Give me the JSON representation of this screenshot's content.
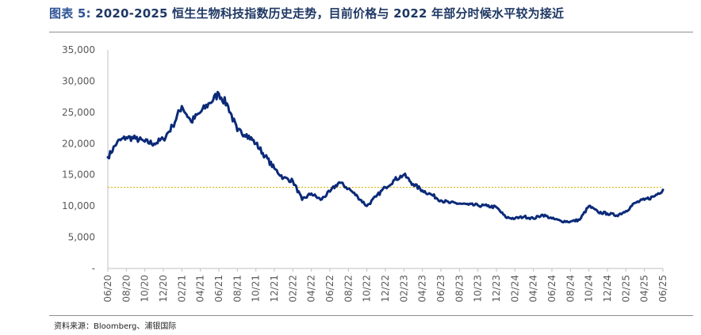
{
  "title": {
    "label": "图表 5:",
    "text": "2020-2025 恒生生物科技指数历史走势，目前价格与 2022 年部分时候水平较为接近"
  },
  "source": "资料来源：Bloomberg、浦银国际",
  "chart_data": {
    "type": "line",
    "title": "2020-2025 恒生生物科技指数历史走势，目前价格与 2022 年部分时候水平较为接近",
    "xlabel": "",
    "ylabel": "",
    "ylim": [
      0,
      35000
    ],
    "y_ticks": [
      0,
      5000,
      10000,
      15000,
      20000,
      25000,
      30000,
      35000
    ],
    "y_tick_labels": [
      "-",
      "5,000",
      "10,000",
      "15,000",
      "20,000",
      "25,000",
      "30,000",
      "35,000"
    ],
    "x_ticks": [
      "06/20",
      "08/20",
      "10/20",
      "12/20",
      "02/21",
      "04/21",
      "06/21",
      "08/21",
      "10/21",
      "12/21",
      "02/22",
      "04/22",
      "06/22",
      "08/22",
      "10/22",
      "12/22",
      "02/23",
      "04/23",
      "06/23",
      "08/23",
      "10/23",
      "12/23",
      "02/24",
      "04/24",
      "06/24",
      "08/24",
      "10/24",
      "12/24",
      "02/25",
      "04/25",
      "06/25"
    ],
    "grid": false,
    "series": [
      {
        "color": "#0b2a78",
        "x": [
          "2020-06",
          "2020-07",
          "2020-08",
          "2020-09",
          "2020-10",
          "2020-11",
          "2020-12",
          "2021-01",
          "2021-02",
          "2021-03",
          "2021-04",
          "2021-05",
          "2021-06",
          "2021-07",
          "2021-08",
          "2021-09",
          "2021-10",
          "2021-11",
          "2021-12",
          "2022-01",
          "2022-02",
          "2022-03",
          "2022-04",
          "2022-05",
          "2022-06",
          "2022-07",
          "2022-08",
          "2022-09",
          "2022-10",
          "2022-11",
          "2022-12",
          "2023-01",
          "2023-02",
          "2023-03",
          "2023-04",
          "2023-05",
          "2023-06",
          "2023-07",
          "2023-08",
          "2023-09",
          "2023-10",
          "2023-11",
          "2023-12",
          "2024-01",
          "2024-02",
          "2024-03",
          "2024-04",
          "2024-05",
          "2024-06",
          "2024-07",
          "2024-08",
          "2024-09",
          "2024-10",
          "2024-11",
          "2024-12",
          "2025-01",
          "2025-02",
          "2025-03",
          "2025-04",
          "2025-05",
          "2025-06"
        ],
        "values": [
          17800,
          20200,
          21000,
          20800,
          20300,
          20000,
          20700,
          22800,
          26000,
          23500,
          25000,
          26500,
          28000,
          26000,
          22000,
          21500,
          20000,
          18000,
          16000,
          14500,
          14000,
          11000,
          12000,
          11000,
          12300,
          13800,
          12800,
          11500,
          10000,
          11500,
          13000,
          14200,
          15000,
          13500,
          12500,
          11800,
          10900,
          10500,
          10400,
          10200,
          10100,
          10000,
          9800,
          8200,
          8000,
          8300,
          8000,
          8600,
          8000,
          7600,
          7500,
          7800,
          10000,
          9000,
          8800,
          8500,
          9200,
          10500,
          11000,
          11500,
          12600
        ]
      }
    ],
    "reference_line": {
      "value": 13000,
      "color": "#d9b400",
      "style": "dotted"
    }
  }
}
